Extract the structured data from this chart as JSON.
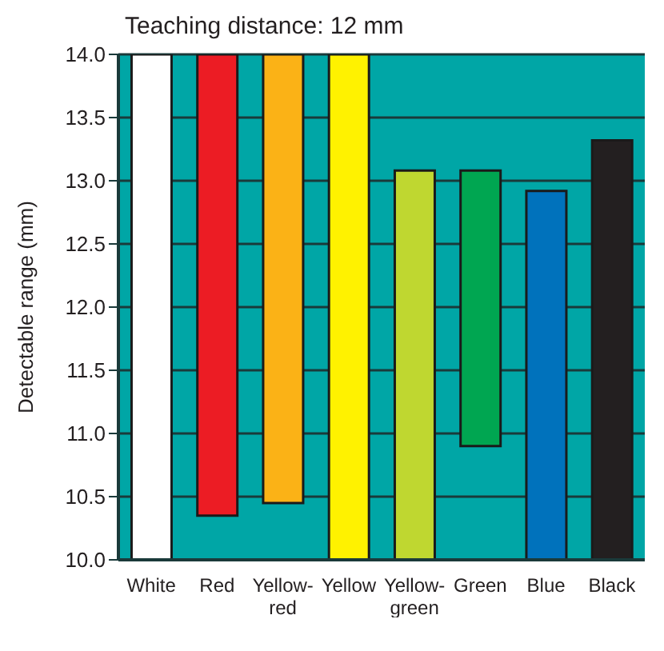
{
  "chart_data": {
    "type": "bar",
    "title": "Teaching distance: 12 mm",
    "ylabel": "Detectable range (mm)",
    "categories": [
      "White",
      "Red",
      "Yellow-red",
      "Yellow",
      "Yellow-green",
      "Green",
      "Blue",
      "Black"
    ],
    "values": [
      4.0,
      3.65,
      3.55,
      4.0,
      3.08,
      2.18,
      2.92,
      3.32
    ],
    "base": [
      10,
      10.35,
      10.45,
      10,
      10,
      10.9,
      10,
      10
    ],
    "colors": [
      "#ffffff",
      "#ec1c24",
      "#fbb216",
      "#fff200",
      "#bfd730",
      "#00a651",
      "#0072bc",
      "#231f20"
    ],
    "ylim": [
      10,
      14
    ],
    "yticks": [
      {
        "value": 10,
        "label": "10.0"
      },
      {
        "value": 10.5,
        "label": "10.5"
      },
      {
        "value": 11,
        "label": "11.0"
      },
      {
        "value": 11.5,
        "label": "11.5"
      },
      {
        "value": 12,
        "label": "12.0"
      },
      {
        "value": 12.5,
        "label": "12.5"
      },
      {
        "value": 13,
        "label": "13.0"
      },
      {
        "value": 13.5,
        "label": "13.5"
      },
      {
        "value": 14,
        "label": "14.0"
      }
    ],
    "grid": "y"
  }
}
